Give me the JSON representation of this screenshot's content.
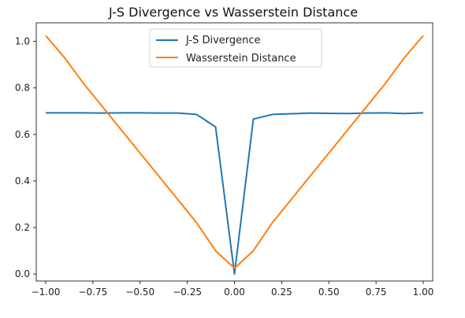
{
  "chart_data": {
    "type": "line",
    "title": "J-S Divergence vs Wasserstein Distance",
    "xlabel": "",
    "ylabel": "",
    "xlim": [
      -1.05,
      1.05
    ],
    "ylim": [
      -0.03,
      1.08
    ],
    "x_ticks": [
      -1.0,
      -0.75,
      -0.5,
      -0.25,
      0.0,
      0.25,
      0.5,
      0.75,
      1.0
    ],
    "x_tick_labels": [
      "−1.00",
      "−0.75",
      "−0.50",
      "−0.25",
      "0.00",
      "0.25",
      "0.50",
      "0.75",
      "1.00"
    ],
    "y_ticks": [
      0.0,
      0.2,
      0.4,
      0.6,
      0.8,
      1.0
    ],
    "y_tick_labels": [
      "0.0",
      "0.2",
      "0.4",
      "0.6",
      "0.8",
      "1.0"
    ],
    "grid": false,
    "legend_position": "upper center",
    "series": [
      {
        "name": "J-S Divergence",
        "color": "#1f77b4",
        "x": [
          -1.0,
          -0.9,
          -0.8,
          -0.7,
          -0.6,
          -0.5,
          -0.4,
          -0.3,
          -0.2,
          -0.1,
          0.0,
          0.1,
          0.2,
          0.3,
          0.4,
          0.5,
          0.6,
          0.7,
          0.8,
          0.9,
          1.0
        ],
        "values": [
          0.693,
          0.693,
          0.693,
          0.692,
          0.693,
          0.693,
          0.692,
          0.692,
          0.686,
          0.632,
          0.0,
          0.666,
          0.686,
          0.689,
          0.692,
          0.691,
          0.69,
          0.692,
          0.693,
          0.69,
          0.693
        ]
      },
      {
        "name": "Wasserstein Distance",
        "color": "#ff7f0e",
        "x": [
          -1.0,
          -0.9,
          -0.8,
          -0.7,
          -0.6,
          -0.5,
          -0.4,
          -0.3,
          -0.2,
          -0.1,
          0.0,
          0.1,
          0.2,
          0.3,
          0.4,
          0.5,
          0.6,
          0.7,
          0.8,
          0.9,
          1.0
        ],
        "values": [
          1.025,
          0.93,
          0.82,
          0.72,
          0.62,
          0.52,
          0.42,
          0.32,
          0.22,
          0.1,
          0.025,
          0.1,
          0.22,
          0.32,
          0.42,
          0.52,
          0.62,
          0.72,
          0.82,
          0.93,
          1.025
        ]
      }
    ]
  }
}
